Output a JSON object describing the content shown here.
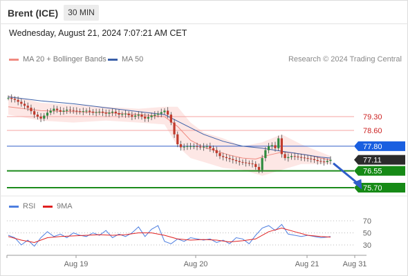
{
  "header": {
    "instrument": "Brent (ICE)",
    "timeframe": "30 MIN",
    "datetime": "Wednesday, August 21, 2024 7:07:21 AM CET"
  },
  "legend": {
    "ma20_label": "MA 20 + Bollinger Bands",
    "ma50_label": "MA 50",
    "credit": "Research © 2024 Trading Central",
    "ma20_color": "#f08a80",
    "ma50_color": "#3a5fa8"
  },
  "rsi_legend": {
    "rsi_label": "RSI",
    "ma_label": "9MA",
    "rsi_color": "#4d7ee0",
    "ma_color": "#e02020"
  },
  "chart_data": [
    {
      "type": "line",
      "title": "",
      "x_labels": [
        "Aug 19",
        "Aug 20",
        "Aug 21",
        "Aug 31"
      ],
      "levels": [
        {
          "value": 79.3,
          "label": "79.30",
          "kind": "resistance-soft"
        },
        {
          "value": 78.6,
          "label": "78.60",
          "kind": "resistance-soft"
        },
        {
          "value": 77.8,
          "label": "77.80",
          "kind": "pivot"
        },
        {
          "value": 77.11,
          "label": "77.11",
          "kind": "last-price"
        },
        {
          "value": 76.55,
          "label": "76.55",
          "kind": "support"
        },
        {
          "value": 75.7,
          "label": "75.70",
          "kind": "support"
        }
      ],
      "price_series": [
        [
          0,
          80.25
        ],
        [
          2,
          80.15
        ],
        [
          4,
          79.95
        ],
        [
          6,
          79.75
        ],
        [
          8,
          79.4
        ],
        [
          10,
          79.2
        ],
        [
          12,
          79.5
        ],
        [
          14,
          79.7
        ],
        [
          16,
          79.55
        ],
        [
          18,
          79.65
        ],
        [
          20,
          79.6
        ],
        [
          22,
          79.55
        ],
        [
          24,
          79.6
        ],
        [
          26,
          79.5
        ],
        [
          28,
          79.55
        ],
        [
          30,
          79.45
        ],
        [
          32,
          79.55
        ],
        [
          34,
          79.4
        ],
        [
          36,
          79.45
        ],
        [
          38,
          79.3
        ],
        [
          40,
          79.4
        ],
        [
          42,
          79.2
        ],
        [
          44,
          79.35
        ],
        [
          46,
          79.45
        ],
        [
          48,
          79.6
        ],
        [
          49,
          79.4
        ],
        [
          50,
          79.0
        ],
        [
          51,
          78.4
        ],
        [
          52,
          77.9
        ],
        [
          53,
          77.75
        ],
        [
          55,
          77.8
        ],
        [
          57,
          77.8
        ],
        [
          59,
          77.75
        ],
        [
          61,
          77.8
        ],
        [
          63,
          77.6
        ],
        [
          65,
          77.3
        ],
        [
          67,
          77.2
        ],
        [
          69,
          77.1
        ],
        [
          71,
          77.0
        ],
        [
          73,
          76.95
        ],
        [
          75,
          76.9
        ],
        [
          77,
          76.6
        ],
        [
          78,
          77.2
        ],
        [
          79,
          77.6
        ],
        [
          80,
          77.8
        ],
        [
          81,
          77.85
        ],
        [
          82,
          77.7
        ],
        [
          83,
          78.2
        ],
        [
          84,
          77.4
        ],
        [
          85,
          77.2
        ],
        [
          87,
          77.3
        ],
        [
          89,
          77.25
        ],
        [
          91,
          77.2
        ],
        [
          93,
          77.15
        ],
        [
          95,
          77.05
        ],
        [
          97,
          77.0
        ],
        [
          99,
          77.11
        ]
      ],
      "ma20_series": [
        [
          0,
          79.8
        ],
        [
          10,
          79.6
        ],
        [
          20,
          79.55
        ],
        [
          30,
          79.5
        ],
        [
          40,
          79.4
        ],
        [
          48,
          79.3
        ],
        [
          52,
          78.8
        ],
        [
          56,
          78.1
        ],
        [
          60,
          77.75
        ],
        [
          64,
          77.55
        ],
        [
          68,
          77.35
        ],
        [
          72,
          77.2
        ],
        [
          76,
          77.15
        ],
        [
          80,
          77.35
        ],
        [
          84,
          77.5
        ],
        [
          88,
          77.45
        ],
        [
          92,
          77.35
        ],
        [
          96,
          77.2
        ],
        [
          99,
          77.1
        ]
      ],
      "ma50_series": [
        [
          0,
          80.3
        ],
        [
          10,
          80.1
        ],
        [
          20,
          79.95
        ],
        [
          30,
          79.75
        ],
        [
          40,
          79.55
        ],
        [
          48,
          79.4
        ],
        [
          54,
          78.9
        ],
        [
          60,
          78.4
        ],
        [
          66,
          78.05
        ],
        [
          72,
          77.8
        ],
        [
          78,
          77.7
        ],
        [
          84,
          77.55
        ],
        [
          90,
          77.4
        ],
        [
          96,
          77.25
        ],
        [
          99,
          77.2
        ]
      ],
      "bollinger_upper": [
        [
          0,
          80.4
        ],
        [
          10,
          80.0
        ],
        [
          20,
          79.9
        ],
        [
          30,
          79.8
        ],
        [
          40,
          79.7
        ],
        [
          48,
          79.8
        ],
        [
          52,
          79.8
        ],
        [
          56,
          79.0
        ],
        [
          60,
          78.5
        ],
        [
          66,
          78.2
        ],
        [
          72,
          77.8
        ],
        [
          78,
          78.0
        ],
        [
          84,
          78.4
        ],
        [
          90,
          77.9
        ],
        [
          96,
          77.5
        ],
        [
          99,
          77.3
        ]
      ],
      "bollinger_lower": [
        [
          0,
          79.4
        ],
        [
          10,
          79.1
        ],
        [
          20,
          79.0
        ],
        [
          30,
          79.1
        ],
        [
          40,
          79.0
        ],
        [
          48,
          78.9
        ],
        [
          52,
          77.8
        ],
        [
          56,
          77.2
        ],
        [
          60,
          77.0
        ],
        [
          66,
          76.7
        ],
        [
          72,
          76.6
        ],
        [
          78,
          76.3
        ],
        [
          84,
          76.6
        ],
        [
          90,
          76.9
        ],
        [
          96,
          76.9
        ],
        [
          99,
          76.9
        ]
      ],
      "projection": {
        "from": [
          99,
          77.11
        ],
        "to": [
          108,
          75.75
        ]
      }
    },
    {
      "type": "line",
      "title": "",
      "y_ticks": [
        "70",
        "50",
        "30"
      ],
      "ylim": [
        20,
        80
      ],
      "rsi_series": [
        [
          0,
          46
        ],
        [
          2,
          42
        ],
        [
          4,
          30
        ],
        [
          6,
          38
        ],
        [
          8,
          28
        ],
        [
          10,
          42
        ],
        [
          12,
          52
        ],
        [
          14,
          44
        ],
        [
          16,
          48
        ],
        [
          18,
          42
        ],
        [
          20,
          50
        ],
        [
          22,
          46
        ],
        [
          24,
          44
        ],
        [
          26,
          50
        ],
        [
          28,
          46
        ],
        [
          30,
          54
        ],
        [
          32,
          42
        ],
        [
          34,
          48
        ],
        [
          36,
          44
        ],
        [
          38,
          50
        ],
        [
          40,
          60
        ],
        [
          42,
          44
        ],
        [
          44,
          56
        ],
        [
          46,
          62
        ],
        [
          48,
          36
        ],
        [
          50,
          32
        ],
        [
          52,
          40
        ],
        [
          54,
          36
        ],
        [
          56,
          42
        ],
        [
          58,
          40
        ],
        [
          60,
          38
        ],
        [
          62,
          40
        ],
        [
          64,
          34
        ],
        [
          66,
          38
        ],
        [
          68,
          32
        ],
        [
          70,
          42
        ],
        [
          72,
          40
        ],
        [
          74,
          32
        ],
        [
          76,
          46
        ],
        [
          78,
          58
        ],
        [
          80,
          62
        ],
        [
          82,
          54
        ],
        [
          84,
          64
        ],
        [
          86,
          48
        ],
        [
          88,
          46
        ],
        [
          90,
          44
        ],
        [
          92,
          46
        ],
        [
          94,
          44
        ],
        [
          96,
          42
        ],
        [
          98,
          43
        ],
        [
          99,
          44
        ]
      ],
      "rsi_ma_series": [
        [
          0,
          44
        ],
        [
          4,
          38
        ],
        [
          8,
          34
        ],
        [
          12,
          42
        ],
        [
          16,
          44
        ],
        [
          20,
          45
        ],
        [
          24,
          46
        ],
        [
          28,
          47
        ],
        [
          32,
          46
        ],
        [
          36,
          47
        ],
        [
          40,
          50
        ],
        [
          44,
          50
        ],
        [
          48,
          46
        ],
        [
          52,
          40
        ],
        [
          56,
          38
        ],
        [
          60,
          39
        ],
        [
          64,
          38
        ],
        [
          68,
          35
        ],
        [
          72,
          37
        ],
        [
          76,
          40
        ],
        [
          80,
          52
        ],
        [
          84,
          58
        ],
        [
          88,
          52
        ],
        [
          92,
          46
        ],
        [
          96,
          44
        ],
        [
          99,
          43
        ]
      ]
    }
  ]
}
